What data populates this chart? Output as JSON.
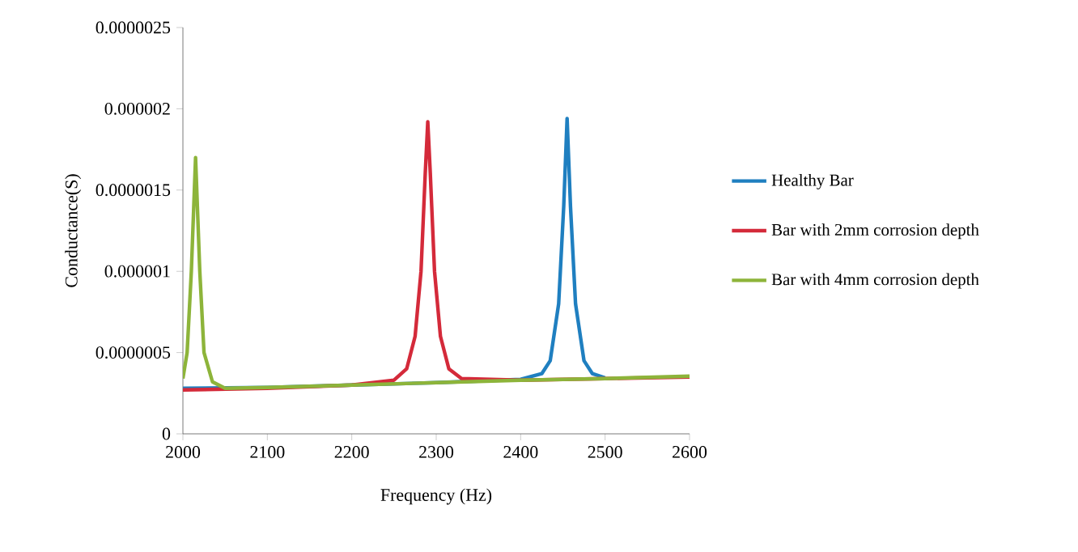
{
  "chart_data": {
    "type": "line",
    "xlabel": "Frequency (Hz)",
    "ylabel": "Conductance(S)",
    "xlim": [
      2000,
      2600
    ],
    "xticks": [
      2000,
      2100,
      2200,
      2300,
      2400,
      2500,
      2600
    ],
    "ylim": [
      0,
      2.5e-06
    ],
    "yticks": [
      0,
      {
        "value": 5e-07,
        "label": "0.0000005"
      },
      {
        "value": 1e-06,
        "label": "0.000001"
      },
      {
        "value": 1.5e-06,
        "label": "0.0000015"
      },
      {
        "value": 2e-06,
        "label": "0.000002"
      },
      {
        "value": 2.5e-06,
        "label": "0.0000025"
      }
    ],
    "grid": false,
    "legend": "right",
    "marker": "none",
    "line_style": "solid",
    "series": [
      {
        "name": "Healthy Bar",
        "color": "#1f7fc0",
        "x": [
          2000,
          2100,
          2200,
          2300,
          2400,
          2425,
          2435,
          2445,
          2451,
          2455,
          2459,
          2465,
          2475,
          2485,
          2500
        ],
        "values": [
          2.8e-07,
          2.85e-07,
          3e-07,
          3.15e-07,
          3.35e-07,
          3.7e-07,
          4.5e-07,
          8e-07,
          1.4e-06,
          1.94e-06,
          1.4e-06,
          8e-07,
          4.5e-07,
          3.7e-07,
          3.45e-07
        ]
      },
      {
        "name": "Bar with 2mm corrosion depth",
        "color": "#d42a3a",
        "x": [
          2000,
          2100,
          2200,
          2250,
          2265,
          2275,
          2282,
          2287,
          2290,
          2293,
          2298,
          2305,
          2315,
          2330,
          2400,
          2500,
          2600
        ],
        "values": [
          2.7e-07,
          2.8e-07,
          3e-07,
          3.3e-07,
          4e-07,
          6e-07,
          1e-06,
          1.6e-06,
          1.92e-06,
          1.6e-06,
          1e-06,
          6e-07,
          4e-07,
          3.4e-07,
          3.3e-07,
          3.4e-07,
          3.5e-07
        ]
      },
      {
        "name": "Bar with 4mm corrosion depth",
        "color": "#8db43a",
        "x": [
          2000,
          2005,
          2010,
          2015,
          2020,
          2025,
          2035,
          2050,
          2100,
          2200,
          2300,
          2400,
          2500,
          2600
        ],
        "values": [
          3.4e-07,
          5e-07,
          1e-06,
          1.7e-06,
          1e-06,
          5e-07,
          3.2e-07,
          2.8e-07,
          2.85e-07,
          3e-07,
          3.15e-07,
          3.3e-07,
          3.4e-07,
          3.55e-07
        ]
      }
    ]
  }
}
